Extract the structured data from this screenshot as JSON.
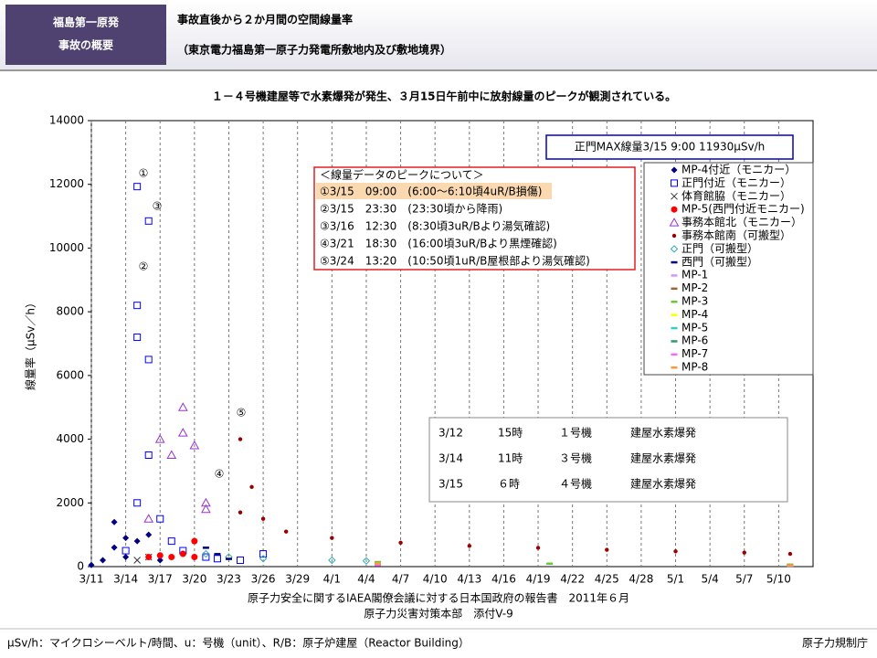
{
  "header": {
    "badge": [
      "福島第一原発",
      "事故の概要"
    ],
    "title": [
      "事故直後から２か月間の空間線量率",
      "（東京電力福島第一原子力発電所敷地内及び敷地境界）"
    ],
    "subtitle": "１－４号機建屋等で水素爆発が発生、３月15日午前中に放射線量のピークが観測されている。"
  },
  "chart_data": {
    "type": "scatter",
    "y_label": "線量率（μSv／h）",
    "ylim": [
      0,
      14000
    ],
    "yticks": [
      0,
      2000,
      4000,
      6000,
      8000,
      10000,
      12000,
      14000
    ],
    "xlim": [
      "3/11",
      "5/13"
    ],
    "xticks": [
      "3/11",
      "3/14",
      "3/17",
      "3/20",
      "3/23",
      "3/26",
      "3/29",
      "4/1",
      "4/4",
      "4/7",
      "4/10",
      "4/13",
      "4/16",
      "4/19",
      "4/22",
      "4/25",
      "4/28",
      "5/1",
      "5/4",
      "5/7",
      "5/10"
    ],
    "grid": true,
    "series": [
      {
        "name": "MP-4付近（モニカー）",
        "color": "#000080",
        "marker": "diamond",
        "x": [
          "3/11",
          "3/12",
          "3/13",
          "3/13",
          "3/14",
          "3/14",
          "3/15",
          "3/16",
          "3/17"
        ],
        "values": [
          50,
          200,
          600,
          1400,
          300,
          900,
          800,
          1000,
          200
        ]
      },
      {
        "name": "正門付近（モニカー）",
        "color": "#0000ff",
        "marker": "square-open",
        "x": [
          "3/14",
          "3/15",
          "3/15",
          "3/15",
          "3/15",
          "3/16",
          "3/16",
          "3/16",
          "3/17",
          "3/18",
          "3/19",
          "3/21",
          "3/22",
          "3/24",
          "3/26"
        ],
        "values": [
          500,
          2000,
          11930,
          8200,
          7200,
          10850,
          6500,
          3500,
          1500,
          800,
          500,
          300,
          250,
          200,
          400
        ]
      },
      {
        "name": "体育館脇（モニカー）",
        "color": "#333333",
        "marker": "x",
        "x": [
          "3/15",
          "3/16"
        ],
        "values": [
          200,
          300
        ]
      },
      {
        "name": "MP-5(西門付近モニカー)",
        "color": "#ff0000",
        "marker": "circle",
        "x": [
          "3/16",
          "3/17",
          "3/18",
          "3/19",
          "3/20",
          "3/20"
        ],
        "values": [
          300,
          350,
          300,
          400,
          800,
          300
        ]
      },
      {
        "name": "事務本館北（モニカー）",
        "color": "#9933cc",
        "marker": "triangle-open",
        "x": [
          "3/16",
          "3/17",
          "3/18",
          "3/19",
          "3/19",
          "3/20",
          "3/21",
          "3/21"
        ],
        "values": [
          1500,
          4000,
          3500,
          5000,
          4200,
          3800,
          2000,
          1800
        ]
      },
      {
        "name": "事務本館南（可搬型）",
        "color": "#990000",
        "marker": "dot",
        "x": [
          "3/24",
          "3/24",
          "3/25",
          "3/26",
          "3/28",
          "4/1",
          "4/7",
          "4/13",
          "4/19",
          "4/25",
          "5/1",
          "5/7",
          "5/11"
        ],
        "values": [
          1700,
          4000,
          2500,
          1500,
          1100,
          900,
          750,
          650,
          590,
          530,
          480,
          440,
          400
        ]
      },
      {
        "name": "正門（可搬型）",
        "color": "#33aaaa",
        "marker": "diamond-open",
        "x": [
          "3/21",
          "3/23",
          "3/26",
          "4/1",
          "4/4"
        ],
        "values": [
          400,
          300,
          250,
          200,
          180
        ]
      },
      {
        "name": "西門（可搬型）",
        "color": "#000080",
        "marker": "dash",
        "x": [
          "3/21",
          "3/22",
          "3/23"
        ],
        "values": [
          600,
          400,
          250
        ]
      },
      {
        "name": "MP-1",
        "color": "#cc99ff",
        "marker": "dash",
        "x": [
          "4/5",
          "5/11"
        ],
        "values": [
          60,
          40
        ]
      },
      {
        "name": "MP-2",
        "color": "#996633",
        "marker": "dash",
        "x": [
          "4/5",
          "5/11"
        ],
        "values": [
          120,
          60
        ]
      },
      {
        "name": "MP-3",
        "color": "#66cc33",
        "marker": "dash",
        "x": [
          "4/5",
          "4/20",
          "5/11"
        ],
        "values": [
          150,
          100,
          70
        ]
      },
      {
        "name": "MP-4",
        "color": "#ffff00",
        "marker": "dash",
        "x": [
          "4/5",
          "5/11"
        ],
        "values": [
          90,
          50
        ]
      },
      {
        "name": "MP-5",
        "color": "#33cccc",
        "marker": "dash",
        "x": [
          "4/5",
          "5/11"
        ],
        "values": [
          80,
          40
        ]
      },
      {
        "name": "MP-6",
        "color": "#339966",
        "marker": "dash",
        "x": [
          "4/5",
          "5/11"
        ],
        "values": [
          100,
          55
        ]
      },
      {
        "name": "MP-7",
        "color": "#ff66ff",
        "marker": "dash",
        "x": [
          "4/5",
          "5/11"
        ],
        "values": [
          70,
          45
        ]
      },
      {
        "name": "MP-8",
        "color": "#ff9933",
        "marker": "dash",
        "x": [
          "4/5",
          "5/11"
        ],
        "values": [
          110,
          50
        ]
      }
    ],
    "annotation_labels": [
      "①",
      "②",
      "③",
      "④",
      "⑤"
    ],
    "max_note": "正門MAX線量3/15  9:00  11930μSv/h",
    "peak_note": {
      "title": "＜線量データのピークについて＞",
      "lines": [
        "①3/15　09:00　(6:00～6:10頃4uR/B損傷)",
        "②3/15　23:30　(23:30頃から降雨)",
        "③3/16　12:30　(8:30頃3uR/Bより湯気確認)",
        "④3/21　18:30　(16:00頃3uR/Bより黒煙確認)",
        "⑤3/24　13:20　(10:50頃1uR/B屋根部より湯気確認)"
      ]
    },
    "explosions": [
      [
        "3/12",
        "15時",
        "１号機",
        "建屋水素爆発"
      ],
      [
        "3/14",
        "11時",
        "３号機",
        "建屋水素爆発"
      ],
      [
        "3/15",
        "６時",
        "４号機",
        "建屋水素爆発"
      ]
    ]
  },
  "source": [
    "原子力安全に関するIAEA閣僚会議に対する日本国政府の報告書　2011年６月",
    "原子力災害対策本部　添付V-9"
  ],
  "footer": {
    "note": "μSv/h：マイクロシーベルト/時間、u：号機（unit）、R/B：原子炉建屋（Reactor Building）",
    "org": "原子力規制庁"
  }
}
